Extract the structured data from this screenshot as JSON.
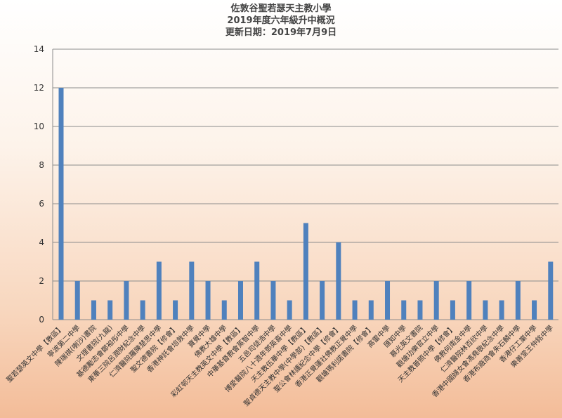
{
  "chart_data": {
    "type": "bar",
    "title_lines": [
      "佐敦谷聖若瑟天主教小學",
      "2019年度六年級升中概況",
      "更新日期：2019年7月9日"
    ],
    "xlabel": "",
    "ylabel": "",
    "ylim": [
      0,
      14
    ],
    "yticks": [
      0,
      2,
      4,
      6,
      8,
      10,
      12,
      14
    ],
    "grid": true,
    "legend": "none",
    "bar_color": "#4f81bd",
    "categories": [
      "聖若瑟英文中學【教區】",
      "寧波第二中學",
      "陳瑞祺(喇沙)書院",
      "文理書院(九龍)",
      "基德勵志會鄭裕彤中學",
      "東華三院呂潤財紀念中學",
      "仁濟醫院羅陳楚思中學",
      "聖文德書院【修會】",
      "香港神託會培敦中學",
      "寶覺中學",
      "佛教大雄中學",
      "彩虹邨天主教英文中學【教區】",
      "中華基督教會蒸智中學",
      "五邑司徒浩中學",
      "博愛醫院八十週年鄧英喜中學",
      "天主教伍華中學【教區】",
      "聖貞德天主教中學(中學部)【教區】",
      "聖公會林護紀念中學【修會】",
      "香港正覺蓮社佛教正覺中學",
      "觀塘瑪利諾書院【修會】",
      "高雷中學",
      "匯知中學",
      "慕光英文書院",
      "觀塘功樂官立中學",
      "天主教普照中學【修會】",
      "佛教何南金中學",
      "仁濟醫院林百欣中學",
      "香港中國婦女會馮堯敬紀念中學",
      "香港布廠商會朱石麟中學",
      "香港仔工業中學",
      "樂善堂王仲銘中學"
    ],
    "values": [
      12,
      2,
      1,
      1,
      2,
      1,
      3,
      1,
      3,
      2,
      1,
      2,
      3,
      2,
      1,
      5,
      2,
      4,
      1,
      1,
      2,
      1,
      1,
      2,
      1,
      2,
      1,
      1,
      2,
      1,
      3
    ]
  }
}
